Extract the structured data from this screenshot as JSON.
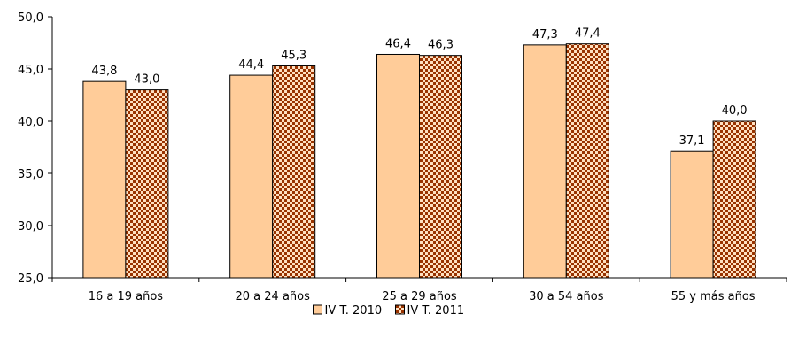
{
  "chart_data": {
    "type": "bar",
    "categories": [
      "16 a 19 años",
      "20 a 24 años",
      "25 a 29 años",
      "30 a 54 años",
      "55 y más años"
    ],
    "series": [
      {
        "name": "IV T. 2010",
        "values": [
          43.8,
          44.4,
          46.4,
          47.3,
          37.1
        ],
        "labels": [
          "43,8",
          "44,4",
          "46,4",
          "47,3",
          "37,1"
        ],
        "color": "#FFCC99",
        "pattern": "solid"
      },
      {
        "name": "IV T. 2011",
        "values": [
          43.0,
          45.3,
          46.3,
          47.4,
          40.0
        ],
        "labels": [
          "43,0",
          "45,3",
          "46,3",
          "47,4",
          "40,0"
        ],
        "color": "#993300",
        "pattern": "checkerboard"
      }
    ],
    "ylim": [
      25,
      50
    ],
    "yticks": [
      25,
      30,
      35,
      40,
      45,
      50
    ],
    "ytick_labels": [
      "25,0",
      "30,0",
      "35,0",
      "40,0",
      "45,0",
      "50,0"
    ],
    "title": "",
    "xlabel": "",
    "ylabel": "",
    "grid": false,
    "legend_position": "bottom"
  }
}
